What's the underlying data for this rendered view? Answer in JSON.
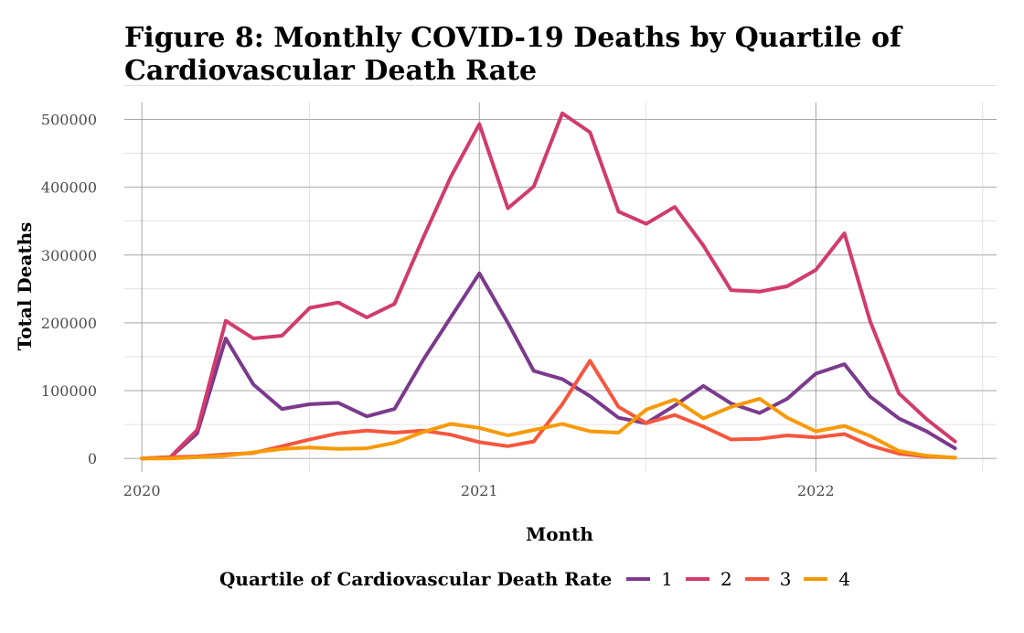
{
  "title": {
    "line1": "Figure 8: Monthly COVID-19 Deaths by Quartile of",
    "line2": "Cardiovascular Death Rate"
  },
  "legend": {
    "title": "Quartile of Cardiovascular Death Rate"
  },
  "chart_data": {
    "type": "line",
    "title": "Figure 8: Monthly COVID-19 Deaths by Quartile of Cardiovascular Death Rate",
    "xlabel": "Month",
    "ylabel": "Total Deaths",
    "x_ticks": [
      "2020",
      "2021",
      "2022"
    ],
    "y_ticks": [
      0,
      100000,
      200000,
      300000,
      400000,
      500000
    ],
    "ylim": [
      -20000,
      525000
    ],
    "xlim": [
      "2019-12-13",
      "2022-07-16"
    ],
    "grid": true,
    "legend_position": "bottom",
    "x": [
      "2020-01",
      "2020-02",
      "2020-03",
      "2020-04",
      "2020-05",
      "2020-06",
      "2020-07",
      "2020-08",
      "2020-09",
      "2020-10",
      "2020-11",
      "2020-12",
      "2021-01",
      "2021-02",
      "2021-03",
      "2021-04",
      "2021-05",
      "2021-06",
      "2021-07",
      "2021-08",
      "2021-09",
      "2021-10",
      "2021-11",
      "2021-12",
      "2022-01",
      "2022-02",
      "2022-03",
      "2022-04",
      "2022-05",
      "2022-06"
    ],
    "series": [
      {
        "name": "1",
        "color": "#7b3a8c",
        "values": [
          0,
          2000,
          37000,
          177000,
          109000,
          73000,
          80000,
          82000,
          62000,
          73000,
          145000,
          208000,
          273000,
          200000,
          129000,
          117000,
          92000,
          60000,
          52000,
          78000,
          107000,
          81000,
          67000,
          88000,
          125000,
          139000,
          91000,
          59000,
          40000,
          15000
        ]
      },
      {
        "name": "2",
        "color": "#d13b6e",
        "values": [
          0,
          2000,
          42000,
          203000,
          177000,
          181000,
          222000,
          230000,
          208000,
          228000,
          325000,
          415000,
          493000,
          369000,
          401000,
          509000,
          481000,
          364000,
          346000,
          371000,
          314000,
          248000,
          246000,
          254000,
          278000,
          332000,
          202000,
          96000,
          58000,
          25000
        ]
      },
      {
        "name": "3",
        "color": "#f5573e",
        "values": [
          0,
          2000,
          3000,
          6000,
          8000,
          18000,
          28000,
          37000,
          41000,
          38000,
          41000,
          35000,
          24000,
          18000,
          25000,
          80000,
          144000,
          76000,
          52000,
          64000,
          47000,
          28000,
          29000,
          34000,
          31000,
          36000,
          19000,
          7000,
          3000,
          1000
        ]
      },
      {
        "name": "4",
        "color": "#f79a05",
        "values": [
          0,
          0,
          2000,
          4000,
          9000,
          14000,
          16000,
          14000,
          15000,
          23000,
          39000,
          51000,
          45000,
          34000,
          42000,
          51000,
          40000,
          38000,
          72000,
          87000,
          59000,
          76000,
          88000,
          60000,
          40000,
          48000,
          33000,
          11000,
          4000,
          1000
        ]
      }
    ]
  }
}
